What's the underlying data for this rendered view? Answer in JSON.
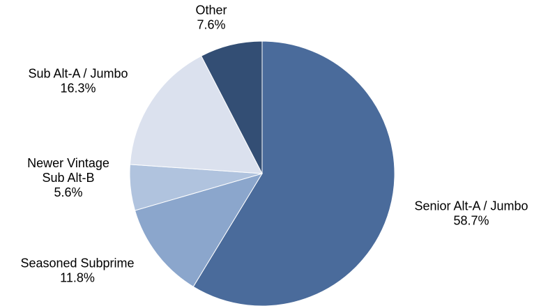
{
  "chart_data": {
    "type": "pie",
    "start_angle_deg": 0,
    "direction": "clockwise",
    "slices": [
      {
        "name_lines": [
          "Senior Alt-A / Jumbo"
        ],
        "value": 58.7,
        "value_label": "58.7%",
        "color": "#4a6b9b"
      },
      {
        "name_lines": [
          "Seasoned Subprime"
        ],
        "value": 11.8,
        "value_label": "11.8%",
        "color": "#8ba6cc"
      },
      {
        "name_lines": [
          "Newer Vintage",
          "Sub Alt-B"
        ],
        "value": 5.6,
        "value_label": "5.6%",
        "color": "#b0c3de"
      },
      {
        "name_lines": [
          "Sub Alt-A / Jumbo"
        ],
        "value": 16.3,
        "value_label": "16.3%",
        "color": "#dbe1ee"
      },
      {
        "name_lines": [
          "Other"
        ],
        "value": 7.6,
        "value_label": "7.6%",
        "color": "#334e74"
      }
    ]
  }
}
